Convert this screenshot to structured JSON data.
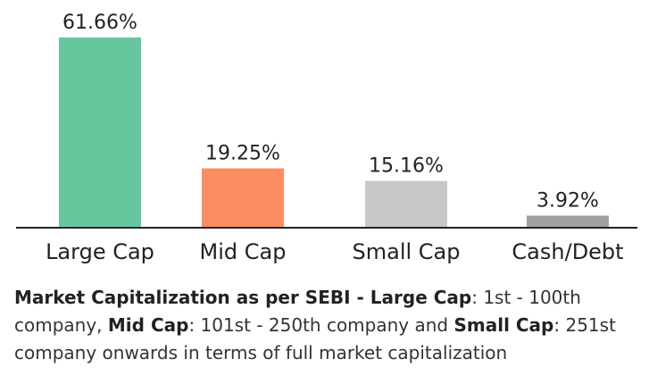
{
  "chart_data": {
    "type": "bar",
    "categories": [
      "Large Cap",
      "Mid Cap",
      "Small Cap",
      "Cash/Debt"
    ],
    "values": [
      61.66,
      19.25,
      15.16,
      3.92
    ],
    "value_labels": [
      "61.66%",
      "19.25%",
      "15.16%",
      "3.92%"
    ],
    "colors": [
      "#66c79e",
      "#fc8d62",
      "#c8c8c8",
      "#a0a0a0"
    ],
    "ylim": [
      0,
      61.66
    ],
    "grid": false,
    "legend": "none"
  },
  "caption": {
    "seg1_bold": "Market Capitalization as per SEBI - ",
    "seg2_bold": "Large Cap",
    "seg3": ": 1st - 100th company, ",
    "seg4_bold": "Mid Cap",
    "seg5": ": 101st - 250th company and ",
    "seg6_bold": "Small Cap",
    "seg7": ": 251st company onwards in terms of full market capitalization"
  }
}
